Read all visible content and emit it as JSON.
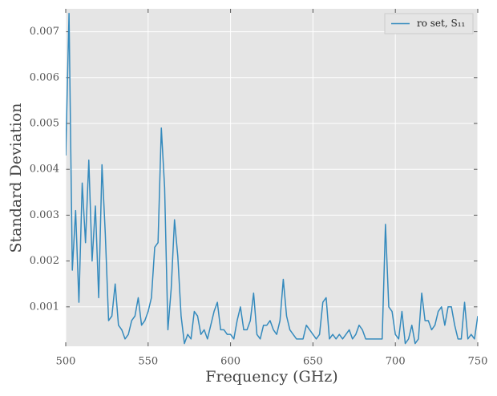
{
  "chart_data": {
    "type": "line",
    "x_label": "Frequency (GHz)",
    "y_label": "Standard Deviation",
    "x": [
      500,
      502,
      504,
      506,
      508,
      510,
      512,
      514,
      516,
      518,
      520,
      522,
      524,
      526,
      528,
      530,
      532,
      534,
      536,
      538,
      540,
      542,
      544,
      546,
      548,
      550,
      552,
      554,
      556,
      558,
      560,
      562,
      564,
      566,
      568,
      570,
      572,
      574,
      576,
      578,
      580,
      582,
      584,
      586,
      588,
      590,
      592,
      594,
      596,
      598,
      600,
      602,
      604,
      606,
      608,
      610,
      612,
      614,
      616,
      618,
      620,
      622,
      624,
      626,
      628,
      630,
      632,
      634,
      636,
      638,
      640,
      642,
      644,
      646,
      648,
      650,
      652,
      654,
      656,
      658,
      660,
      662,
      664,
      666,
      668,
      670,
      672,
      674,
      676,
      678,
      680,
      682,
      684,
      686,
      688,
      690,
      692,
      694,
      696,
      698,
      700,
      702,
      704,
      706,
      708,
      710,
      712,
      714,
      716,
      718,
      720,
      722,
      724,
      726,
      728,
      730,
      732,
      734,
      736,
      738,
      740,
      742,
      744,
      746,
      748,
      750
    ],
    "series": [
      {
        "name": "ro set, S₁₁",
        "color": "#348abd",
        "values": [
          0.0043,
          0.0074,
          0.0018,
          0.0031,
          0.0011,
          0.0037,
          0.0024,
          0.0042,
          0.002,
          0.0032,
          0.0012,
          0.0041,
          0.0026,
          0.0007,
          0.0008,
          0.0015,
          0.0006,
          0.0005,
          0.0003,
          0.0004,
          0.0007,
          0.0008,
          0.0012,
          0.0006,
          0.0007,
          0.0009,
          0.0012,
          0.0023,
          0.0024,
          0.0049,
          0.0036,
          0.0005,
          0.0014,
          0.0029,
          0.0021,
          0.0008,
          0.0002,
          0.0004,
          0.0003,
          0.0009,
          0.0008,
          0.0004,
          0.0005,
          0.0003,
          0.0006,
          0.0009,
          0.0011,
          0.0005,
          0.0005,
          0.0004,
          0.0004,
          0.0003,
          0.0007,
          0.001,
          0.0005,
          0.0005,
          0.0007,
          0.0013,
          0.0004,
          0.0003,
          0.0006,
          0.0006,
          0.0007,
          0.0005,
          0.0004,
          0.0007,
          0.0016,
          0.0008,
          0.0005,
          0.0004,
          0.0003,
          0.0003,
          0.0003,
          0.0006,
          0.0005,
          0.0004,
          0.0003,
          0.0004,
          0.0011,
          0.0012,
          0.0003,
          0.0004,
          0.0003,
          0.0004,
          0.0003,
          0.0004,
          0.0005,
          0.0003,
          0.0004,
          0.0006,
          0.0005,
          0.0003,
          0.0003,
          0.0003,
          0.0003,
          0.0003,
          0.0003,
          0.0028,
          0.001,
          0.0009,
          0.0004,
          0.0003,
          0.0009,
          0.0002,
          0.0003,
          0.0006,
          0.0002,
          0.0003,
          0.0013,
          0.0007,
          0.0007,
          0.0005,
          0.0006,
          0.0009,
          0.001,
          0.0006,
          0.001,
          0.001,
          0.0006,
          0.0003,
          0.0003,
          0.0011,
          0.0003,
          0.0004,
          0.0003,
          0.0008
        ]
      }
    ],
    "xlim": [
      500,
      750
    ],
    "xticks": [
      500,
      550,
      600,
      650,
      700,
      750
    ],
    "ylim": [
      0.00014,
      0.0075
    ],
    "yticks": [
      0.001,
      0.002,
      0.003,
      0.004,
      0.005,
      0.006,
      0.007
    ],
    "grid": true,
    "legend": "upper right"
  }
}
